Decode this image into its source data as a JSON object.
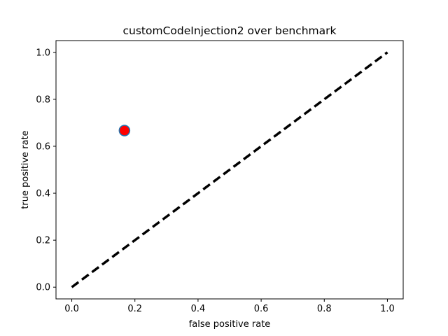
{
  "chart_data": {
    "type": "scatter",
    "title": "customCodeInjection2 over benchmark",
    "xlabel": "false positive rate",
    "ylabel": "true positive rate",
    "xlim": [
      -0.05,
      1.05
    ],
    "ylim": [
      -0.05,
      1.05
    ],
    "xticks": [
      0.0,
      0.2,
      0.4,
      0.6,
      0.8,
      1.0
    ],
    "yticks": [
      0.0,
      0.2,
      0.4,
      0.6,
      0.8,
      1.0
    ],
    "xtick_labels": [
      "0.0",
      "0.2",
      "0.4",
      "0.6",
      "0.8",
      "1.0"
    ],
    "ytick_labels": [
      "0.0",
      "0.2",
      "0.4",
      "0.6",
      "0.8",
      "1.0"
    ],
    "points": [
      {
        "x": 0.167,
        "y": 0.667,
        "color": "#ff0000",
        "edge_color": "#1f77b4"
      }
    ],
    "reference_line": {
      "x": [
        0.0,
        1.0
      ],
      "y": [
        0.0,
        1.0
      ],
      "style": "dashed",
      "color": "#000000"
    },
    "grid": false,
    "legend": "none"
  }
}
